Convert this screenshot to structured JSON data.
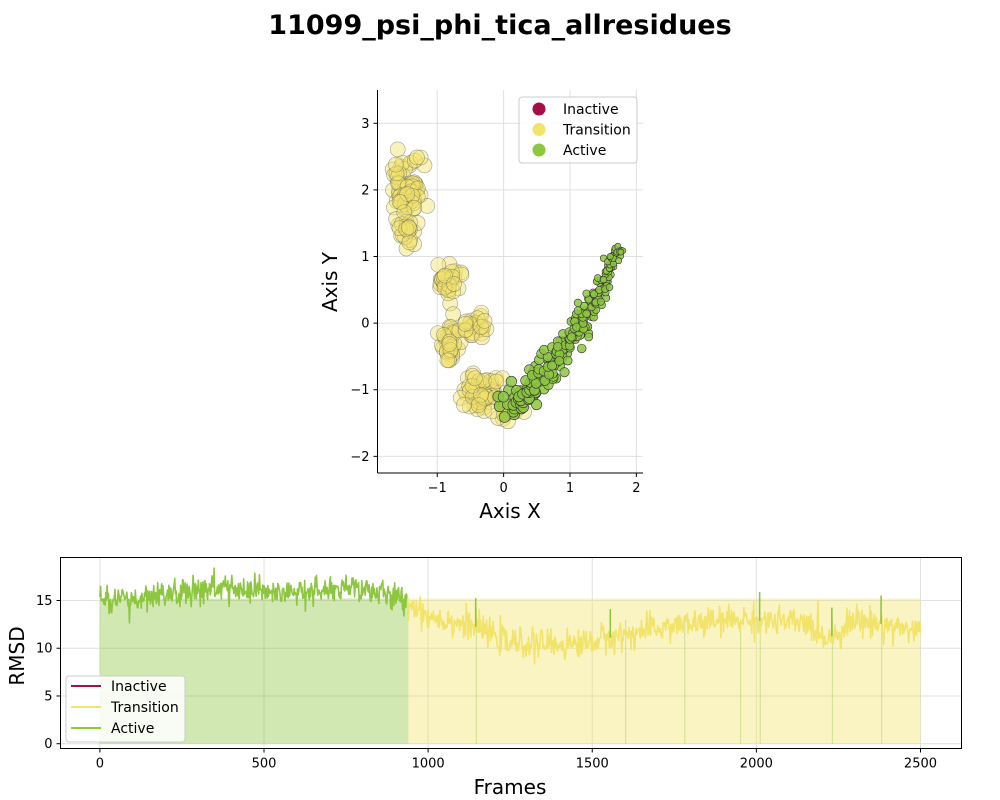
{
  "title": "11099_psi_phi_tica_allresidues",
  "colors": {
    "inactive": "#a50f45",
    "transition": "#f2e36a",
    "active": "#8dc63f"
  },
  "chart_data": [
    {
      "type": "scatter",
      "xlabel": "Axis X",
      "ylabel": "Axis Y",
      "xlim": [
        -1.9,
        2.1
      ],
      "ylim": [
        -2.25,
        3.5
      ],
      "xticks": [
        -1,
        0,
        1,
        2
      ],
      "yticks": [
        -2,
        -1,
        0,
        1,
        2,
        3
      ],
      "xtick_labels": [
        "−1",
        "0",
        "1",
        "2"
      ],
      "ytick_labels": [
        "−2",
        "−1",
        "0",
        "1",
        "2",
        "3"
      ],
      "grid": true,
      "legend": {
        "position": "top-right",
        "entries": [
          "Inactive",
          "Transition",
          "Active"
        ]
      },
      "series": [
        {
          "name": "Inactive",
          "points": []
        },
        {
          "name": "Transition",
          "clusters": [
            {
              "cx": -1.45,
              "cy": 2.15,
              "sx": 0.12,
              "sy": 0.22,
              "n": 45
            },
            {
              "cx": -1.45,
              "cy": 1.55,
              "sx": 0.13,
              "sy": 0.22,
              "n": 40
            },
            {
              "cx": -0.85,
              "cy": 0.65,
              "sx": 0.07,
              "sy": 0.15,
              "n": 30
            },
            {
              "cx": -0.8,
              "cy": -0.25,
              "sx": 0.09,
              "sy": 0.15,
              "n": 35
            },
            {
              "cx": -0.45,
              "cy": -0.05,
              "sx": 0.08,
              "sy": 0.12,
              "n": 25
            },
            {
              "cx": -0.35,
              "cy": -1.05,
              "sx": 0.15,
              "sy": 0.18,
              "n": 55
            },
            {
              "cx": 0.1,
              "cy": -1.3,
              "sx": 0.1,
              "sy": 0.1,
              "n": 15
            }
          ]
        },
        {
          "name": "Active",
          "path": [
            [
              0.05,
              -1.3
            ],
            [
              0.5,
              -0.9
            ],
            [
              1.0,
              -0.25
            ],
            [
              1.35,
              0.3
            ],
            [
              1.75,
              1.15
            ]
          ],
          "n": 240
        }
      ]
    },
    {
      "type": "line",
      "xlabel": "Frames",
      "ylabel": "RMSD",
      "xlim": [
        -120,
        2625
      ],
      "ylim": [
        -0.5,
        19.5
      ],
      "xticks": [
        0,
        500,
        1000,
        1500,
        2000,
        2500
      ],
      "yticks": [
        0,
        5,
        10,
        15
      ],
      "grid": true,
      "legend": {
        "position": "lower-left",
        "entries": [
          "Inactive",
          "Transition",
          "Active"
        ]
      },
      "frames": 2500,
      "segments": [
        {
          "state": "Active",
          "from": 0,
          "to": 940
        },
        {
          "state": "Transition",
          "from": 940,
          "to": 2500
        }
      ],
      "rmsd_profile": [
        [
          0,
          14.8
        ],
        [
          150,
          15.2
        ],
        [
          350,
          16.3
        ],
        [
          550,
          15.6
        ],
        [
          800,
          16.3
        ],
        [
          940,
          14.8
        ],
        [
          1000,
          13.4
        ],
        [
          1150,
          12.2
        ],
        [
          1250,
          10.5
        ],
        [
          1450,
          10.4
        ],
        [
          1600,
          11.4
        ],
        [
          1750,
          12.4
        ],
        [
          1950,
          13.0
        ],
        [
          2150,
          12.6
        ],
        [
          2220,
          11.0
        ],
        [
          2300,
          13.0
        ],
        [
          2500,
          11.8
        ]
      ]
    }
  ]
}
